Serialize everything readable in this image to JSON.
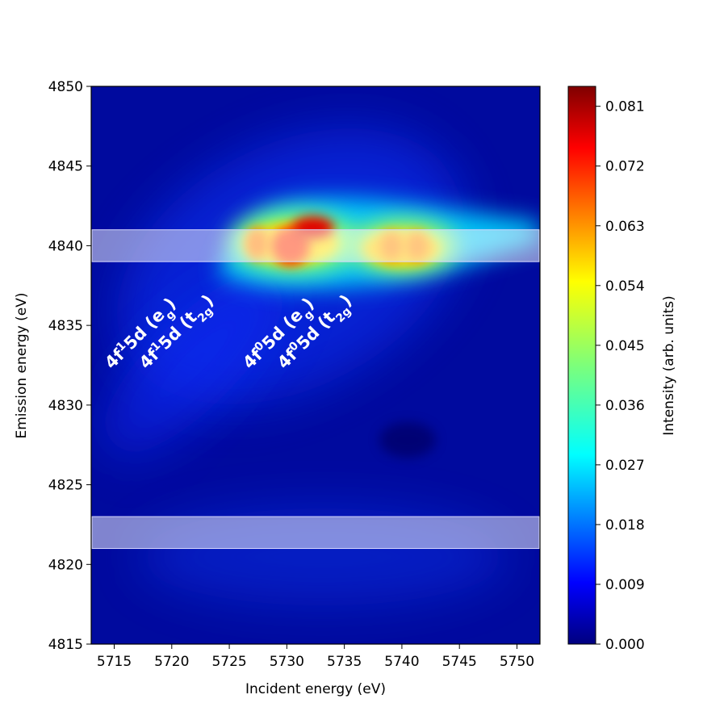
{
  "chart_data": {
    "type": "heatmap",
    "title": "",
    "xlabel": "Incident energy (eV)",
    "ylabel": "Emission energy (eV)",
    "colorbar_label": "Intensity (arb. units)",
    "colormap": "jet",
    "xlim": [
      5713,
      5752
    ],
    "ylim": [
      4815,
      4850
    ],
    "clim": [
      0.0,
      0.084
    ],
    "x_ticks": [
      5715,
      5720,
      5725,
      5730,
      5735,
      5740,
      5745,
      5750
    ],
    "y_ticks": [
      4815,
      4820,
      4825,
      4830,
      4835,
      4840,
      4845,
      4850
    ],
    "colorbar_ticks": [
      "0.000",
      "0.009",
      "0.018",
      "0.027",
      "0.036",
      "0.045",
      "0.054",
      "0.063",
      "0.072",
      "0.081"
    ],
    "grid": false,
    "features": [
      {
        "incident": 5727.0,
        "emission": 4840.2,
        "intensity": 0.058
      },
      {
        "incident": 5730.5,
        "emission": 4840.0,
        "intensity": 0.07
      },
      {
        "incident": 5732.5,
        "emission": 4841.0,
        "intensity": 0.08
      },
      {
        "incident": 5738.5,
        "emission": 4840.0,
        "intensity": 0.06
      },
      {
        "incident": 5741.0,
        "emission": 4840.0,
        "intensity": 0.06
      }
    ],
    "highlight_bands": [
      {
        "emission_range": [
          4839,
          4841
        ]
      },
      {
        "emission_range": [
          4821,
          4823
        ]
      }
    ],
    "annotations": [
      {
        "base": "4f",
        "sup": "1",
        "mid": "5d (e",
        "sub": "g",
        "end": ")",
        "x": 5719.0,
        "y": 4835.0
      },
      {
        "base": "4f",
        "sup": "1",
        "mid": "5d (t",
        "sub": "2g",
        "end": ")",
        "x": 5722.0,
        "y": 4835.0
      },
      {
        "base": "4f",
        "sup": "0",
        "mid": "5d (e",
        "sub": "g",
        "end": ")",
        "x": 5731.0,
        "y": 4835.0
      },
      {
        "base": "4f",
        "sup": "0",
        "mid": "5d (t",
        "sub": "2g",
        "end": ")",
        "x": 5734.0,
        "y": 4835.0
      }
    ]
  }
}
